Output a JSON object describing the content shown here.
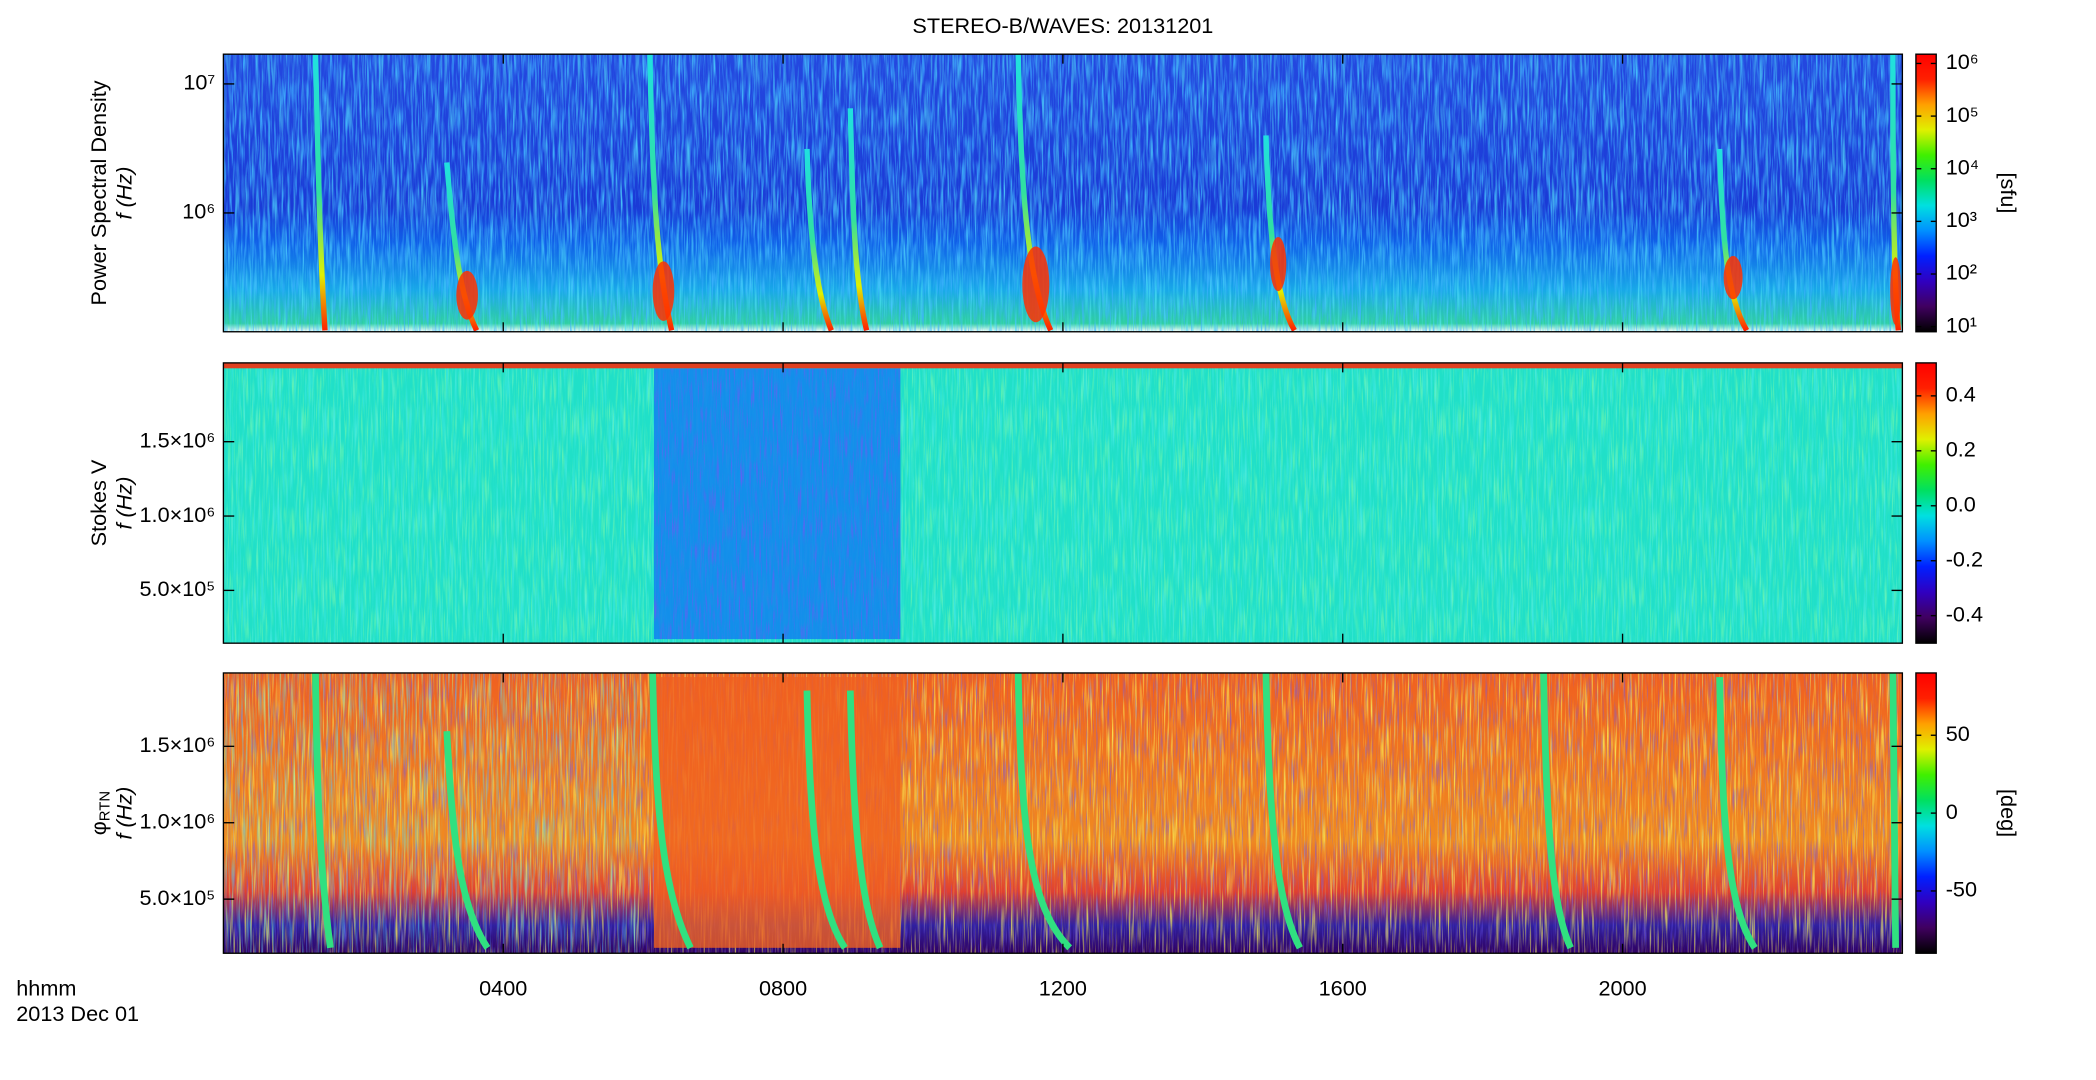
{
  "chart_data": [
    {
      "type": "heatmap",
      "title": "STEREO-B/WAVES: 20131201",
      "ylabel": "Power Spectral Density",
      "ylabel2": "f (Hz)",
      "yscale": "log",
      "ylim": [
        120000,
        17000000
      ],
      "yticks": [
        {
          "value": 1000000,
          "label": "10⁶"
        },
        {
          "value": 10000000,
          "label": "10⁷"
        }
      ],
      "xlim": [
        0,
        24
      ],
      "colormap": [
        "#000000",
        "#400060",
        "#3000c0",
        "#0020ff",
        "#0090ff",
        "#00e0e0",
        "#00e060",
        "#40f000",
        "#e0f000",
        "#ffa000",
        "#ff2000",
        "#ff0000"
      ],
      "colorbar": {
        "scale": "log",
        "clim": [
          8,
          1500000
        ],
        "label": "[sfu]",
        "ticks": [
          {
            "value": 10,
            "label": "10¹"
          },
          {
            "value": 100,
            "label": "10²"
          },
          {
            "value": 1000,
            "label": "10³"
          },
          {
            "value": 10000,
            "label": "10⁴"
          },
          {
            "value": 100000,
            "label": "10⁵"
          },
          {
            "value": 1000000,
            "label": "10⁶"
          }
        ]
      }
    },
    {
      "type": "heatmap",
      "ylabel": "Stokes V",
      "ylabel2": "f (Hz)",
      "yscale": "linear",
      "ylim": [
        145000,
        2030000
      ],
      "yticks": [
        {
          "value": 500000,
          "label": "5.0×10⁵"
        },
        {
          "value": 1000000,
          "label": "1.0×10⁶"
        },
        {
          "value": 1500000,
          "label": "1.5×10⁶"
        }
      ],
      "xlim": [
        0,
        24
      ],
      "colormap": [
        "#000000",
        "#400060",
        "#3000c0",
        "#0020ff",
        "#0090ff",
        "#00e0e0",
        "#00e060",
        "#40f000",
        "#e0f000",
        "#ffa000",
        "#ff2000",
        "#ff0000"
      ],
      "colorbar": {
        "scale": "linear",
        "clim": [
          -0.5,
          0.52
        ],
        "ticks": [
          -0.4,
          -0.2,
          {
            "value": 0,
            "label": "0.0"
          },
          0.2,
          0.4
        ]
      }
    },
    {
      "type": "heatmap",
      "ylabel": "φ",
      "ylabel_sub": "RTN",
      "ylabel2": "f (Hz)",
      "yscale": "linear",
      "ylim": [
        146000,
        1980000
      ],
      "yticks": [
        {
          "value": 500000,
          "label": "5.0×10⁵"
        },
        {
          "value": 1000000,
          "label": "1.0×10⁶"
        },
        {
          "value": 1500000,
          "label": "1.5×10⁶"
        }
      ],
      "xlim": [
        0,
        24
      ],
      "xticks": [
        {
          "value": 4,
          "label": "0400"
        },
        {
          "value": 8,
          "label": "0800"
        },
        {
          "value": 12,
          "label": "1200"
        },
        {
          "value": 16,
          "label": "1600"
        },
        {
          "value": 20,
          "label": "2000"
        }
      ],
      "xlabel": "hhmm",
      "xlabel2": "2013 Dec 01",
      "colormap": [
        "#000000",
        "#400060",
        "#3000c0",
        "#0020ff",
        "#0090ff",
        "#00e0e0",
        "#00e060",
        "#40f000",
        "#e0f000",
        "#ffa000",
        "#ff2000",
        "#ff0000"
      ],
      "colorbar": {
        "scale": "linear",
        "clim": [
          -90,
          90
        ],
        "label": "[deg]",
        "ticks": [
          -50,
          0,
          50
        ]
      }
    }
  ]
}
